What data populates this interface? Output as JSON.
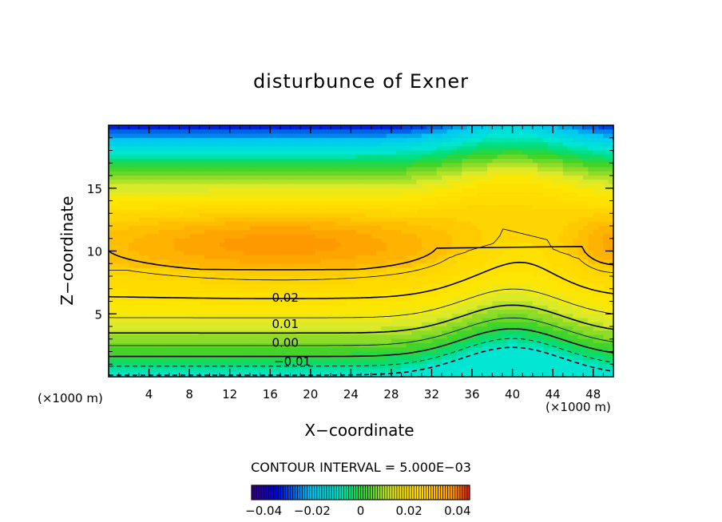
{
  "chart_data": {
    "type": "heatmap",
    "title": "disturbunce of Exner",
    "xlabel": "X−coordinate",
    "ylabel": "Z−coordinate",
    "x_unit_label": "(×1000 m)",
    "z_unit_label": "(×1000 m)",
    "xlim": [
      0,
      50
    ],
    "ylim": [
      0,
      20
    ],
    "x_ticks": [
      4,
      8,
      12,
      16,
      20,
      24,
      28,
      32,
      36,
      40,
      44,
      48
    ],
    "y_ticks": [
      5,
      10,
      15
    ],
    "contour_interval_text": "CONTOUR INTERVAL = 5.000E−03",
    "contour_labels": [
      {
        "text": "0.02",
        "x": 17.5,
        "z": 6.3
      },
      {
        "text": "0.01",
        "x": 17.5,
        "z": 4.2
      },
      {
        "text": "0.00",
        "x": 17.5,
        "z": 2.7
      },
      {
        "text": "−0.01",
        "x": 18.2,
        "z": 1.2
      }
    ],
    "colorbar": {
      "range": [
        -0.045,
        0.045
      ],
      "tick_labels": [
        "−0.04",
        "−0.02",
        "0",
        "0.02",
        "0.04"
      ],
      "tick_values": [
        -0.04,
        -0.02,
        0,
        0.02,
        0.04
      ]
    },
    "field_range": [
      -0.012,
      0.04
    ],
    "colors": {
      "contour_line": "#000000",
      "low_cyan": "#00e4e4",
      "green": "#40d040",
      "yellow": "#ffe000",
      "orange": "#ff9000"
    }
  }
}
